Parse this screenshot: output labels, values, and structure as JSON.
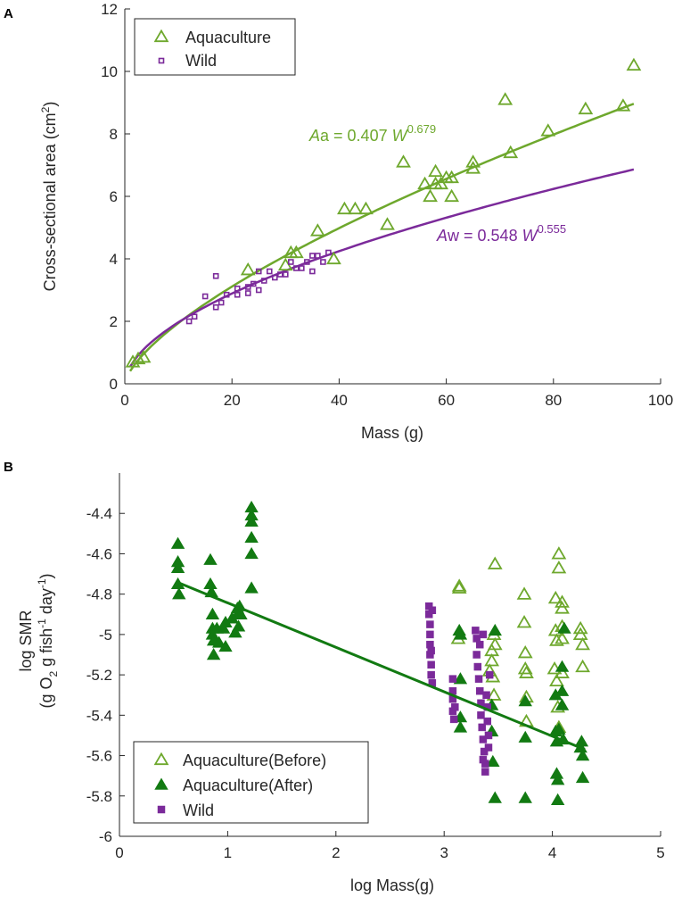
{
  "colors": {
    "aquaculture": "#6ea82d",
    "aquaculture_after": "#127a12",
    "wild": "#7b2a9a",
    "axis": "#262626"
  },
  "chart_data": [
    {
      "panel": "A",
      "type": "scatter",
      "xlabel": "Mass (g)",
      "ylabel": "Cross-sectional area (cm",
      "ylabel_sup": "2",
      "ylabel_close": ")",
      "xlim": [
        0,
        100
      ],
      "ylim": [
        0,
        12
      ],
      "xticks": [
        0,
        20,
        40,
        60,
        80,
        100
      ],
      "yticks": [
        0,
        2,
        4,
        6,
        8,
        10,
        12
      ],
      "legend": {
        "position": "top-left",
        "entries": [
          "Aquaculture",
          "Wild"
        ]
      },
      "annotations": [
        {
          "series": "Aquaculture",
          "symbol": "A",
          "sub": "a",
          "text": " = 0.407 ",
          "var": "W",
          "exp": "0.679"
        },
        {
          "series": "Wild",
          "symbol": "A",
          "sub": "w",
          "text": " = 0.548 ",
          "var": "W",
          "exp": "0.555"
        }
      ],
      "series": [
        {
          "name": "Aquaculture",
          "marker": "open-triangle",
          "color": "#6ea82d",
          "fit": {
            "a": 0.407,
            "b": 0.679,
            "xmin": 1,
            "xmax": 95
          },
          "points": [
            [
              1.5,
              0.7
            ],
            [
              2.5,
              0.8
            ],
            [
              3.5,
              0.85
            ],
            [
              23,
              3.65
            ],
            [
              30,
              3.8
            ],
            [
              31,
              4.2
            ],
            [
              32,
              4.2
            ],
            [
              36,
              4.9
            ],
            [
              39,
              4.0
            ],
            [
              41,
              5.6
            ],
            [
              43,
              5.6
            ],
            [
              45,
              5.6
            ],
            [
              49,
              5.1
            ],
            [
              52,
              7.1
            ],
            [
              56,
              6.4
            ],
            [
              57,
              6.0
            ],
            [
              58,
              6.8
            ],
            [
              58,
              6.4
            ],
            [
              59,
              6.4
            ],
            [
              60,
              6.6
            ],
            [
              61,
              6.0
            ],
            [
              61,
              6.6
            ],
            [
              65,
              7.1
            ],
            [
              65,
              6.9
            ],
            [
              71,
              9.1
            ],
            [
              72,
              7.4
            ],
            [
              79,
              8.1
            ],
            [
              86,
              8.8
            ],
            [
              93,
              8.9
            ],
            [
              95,
              10.2
            ]
          ]
        },
        {
          "name": "Wild",
          "marker": "open-square",
          "color": "#7b2a9a",
          "fit": {
            "a": 0.548,
            "b": 0.555,
            "xmin": 1,
            "xmax": 95
          },
          "points": [
            [
              12,
              2.0
            ],
            [
              13,
              2.15
            ],
            [
              15,
              2.8
            ],
            [
              17,
              2.45
            ],
            [
              17,
              3.45
            ],
            [
              18,
              2.6
            ],
            [
              19,
              2.85
            ],
            [
              21,
              2.85
            ],
            [
              21,
              3.05
            ],
            [
              23,
              2.9
            ],
            [
              23,
              3.1
            ],
            [
              24,
              3.2
            ],
            [
              25,
              3.0
            ],
            [
              25,
              3.6
            ],
            [
              26,
              3.3
            ],
            [
              27,
              3.6
            ],
            [
              28,
              3.4
            ],
            [
              29,
              3.5
            ],
            [
              30,
              3.5
            ],
            [
              31,
              3.9
            ],
            [
              32,
              3.7
            ],
            [
              33,
              3.7
            ],
            [
              34,
              3.9
            ],
            [
              35,
              3.6
            ],
            [
              35,
              4.1
            ],
            [
              36,
              4.1
            ],
            [
              37,
              3.9
            ],
            [
              38,
              4.2
            ]
          ]
        }
      ]
    },
    {
      "panel": "B",
      "type": "scatter",
      "xlabel": "log Mass(g)",
      "ylabel": "log SMR",
      "ylabel2": "(g O",
      "ylabel2_sub": "2",
      "ylabel2_mid": " g fish",
      "ylabel2_sup": "-1",
      "ylabel2_end": " day",
      "ylabel2_sup2": "-1",
      "ylabel2_close": ")",
      "xlim": [
        0,
        5
      ],
      "ylim": [
        -6,
        -4.2
      ],
      "xticks": [
        0,
        1,
        2,
        3,
        4,
        5
      ],
      "yticks": [
        -6,
        -5.8,
        -5.6,
        -5.4,
        -5.2,
        -5,
        -4.8,
        -4.6,
        -4.4
      ],
      "legend": {
        "position": "bottom-left",
        "entries": [
          "Aquaculture(Before)",
          "Aquaculture(After)",
          "Wild"
        ]
      },
      "fit_line": {
        "x": [
          0.53,
          4.3
        ],
        "y": [
          -4.74,
          -5.57
        ],
        "color": "#127a12"
      },
      "series": [
        {
          "name": "Aquaculture(Before)",
          "marker": "open-triangle",
          "color": "#6ea82d",
          "points": [
            [
              3.14,
              -4.76
            ],
            [
              3.14,
              -4.77
            ],
            [
              3.47,
              -4.65
            ],
            [
              3.13,
              -5.02
            ],
            [
              3.44,
              -5.08
            ],
            [
              3.44,
              -5.13
            ],
            [
              3.45,
              -5.21
            ],
            [
              3.46,
              -5.3
            ],
            [
              3.42,
              -5.18
            ],
            [
              3.46,
              -5.0
            ],
            [
              3.47,
              -5.05
            ],
            [
              3.74,
              -4.8
            ],
            [
              3.74,
              -4.94
            ],
            [
              3.75,
              -5.09
            ],
            [
              3.75,
              -5.17
            ],
            [
              3.76,
              -5.31
            ],
            [
              3.76,
              -5.43
            ],
            [
              3.76,
              -5.19
            ],
            [
              4.06,
              -4.6
            ],
            [
              4.06,
              -4.67
            ],
            [
              4.03,
              -4.82
            ],
            [
              4.03,
              -4.98
            ],
            [
              4.04,
              -5.03
            ],
            [
              4.02,
              -5.17
            ],
            [
              4.04,
              -5.23
            ],
            [
              4.05,
              -5.36
            ],
            [
              4.06,
              -5.46
            ],
            [
              4.09,
              -4.84
            ],
            [
              4.09,
              -4.87
            ],
            [
              4.09,
              -4.96
            ],
            [
              4.09,
              -5.02
            ],
            [
              4.09,
              -5.19
            ],
            [
              4.26,
              -4.97
            ],
            [
              4.26,
              -5.0
            ],
            [
              4.28,
              -5.05
            ],
            [
              4.28,
              -5.16
            ]
          ]
        },
        {
          "name": "Aquaculture(After)",
          "marker": "filled-triangle",
          "color": "#127a12",
          "points": [
            [
              0.54,
              -4.55
            ],
            [
              0.54,
              -4.64
            ],
            [
              0.54,
              -4.67
            ],
            [
              0.54,
              -4.75
            ],
            [
              0.55,
              -4.8
            ],
            [
              0.84,
              -4.63
            ],
            [
              0.84,
              -4.75
            ],
            [
              0.85,
              -4.79
            ],
            [
              0.86,
              -4.9
            ],
            [
              0.86,
              -4.97
            ],
            [
              0.86,
              -5.0
            ],
            [
              0.87,
              -5.03
            ],
            [
              0.87,
              -5.1
            ],
            [
              0.9,
              -4.97
            ],
            [
              0.92,
              -5.04
            ],
            [
              0.96,
              -4.97
            ],
            [
              0.98,
              -4.94
            ],
            [
              0.98,
              -5.06
            ],
            [
              1.04,
              -4.92
            ],
            [
              1.07,
              -4.99
            ],
            [
              1.09,
              -4.87
            ],
            [
              1.09,
              -4.9
            ],
            [
              1.1,
              -4.96
            ],
            [
              1.11,
              -4.86
            ],
            [
              1.12,
              -4.9
            ],
            [
              1.22,
              -4.37
            ],
            [
              1.22,
              -4.41
            ],
            [
              1.22,
              -4.44
            ],
            [
              1.22,
              -4.52
            ],
            [
              1.22,
              -4.6
            ],
            [
              1.22,
              -4.77
            ],
            [
              3.14,
              -4.98
            ],
            [
              3.15,
              -5.0
            ],
            [
              3.15,
              -5.22
            ],
            [
              3.15,
              -5.41
            ],
            [
              3.15,
              -5.46
            ],
            [
              3.44,
              -5.35
            ],
            [
              3.44,
              -5.48
            ],
            [
              3.45,
              -5.63
            ],
            [
              3.47,
              -4.98
            ],
            [
              3.47,
              -5.81
            ],
            [
              3.75,
              -5.33
            ],
            [
              3.75,
              -5.51
            ],
            [
              3.75,
              -5.81
            ],
            [
              4.03,
              -5.3
            ],
            [
              4.03,
              -5.48
            ],
            [
              4.04,
              -5.53
            ],
            [
              4.04,
              -5.69
            ],
            [
              4.05,
              -5.72
            ],
            [
              4.05,
              -5.82
            ],
            [
              4.06,
              -5.47
            ],
            [
              4.09,
              -5.16
            ],
            [
              4.09,
              -5.28
            ],
            [
              4.09,
              -5.35
            ],
            [
              4.1,
              -5.52
            ],
            [
              4.11,
              -4.97
            ],
            [
              4.26,
              -5.56
            ],
            [
              4.27,
              -5.53
            ],
            [
              4.28,
              -5.6
            ],
            [
              4.28,
              -5.71
            ]
          ]
        },
        {
          "name": "Wild",
          "marker": "filled-square",
          "color": "#7b2a9a",
          "points": [
            [
              2.86,
              -4.86
            ],
            [
              2.86,
              -4.9
            ],
            [
              2.87,
              -4.95
            ],
            [
              2.87,
              -5.0
            ],
            [
              2.87,
              -5.05
            ],
            [
              2.87,
              -5.1
            ],
            [
              2.88,
              -5.15
            ],
            [
              2.88,
              -5.2
            ],
            [
              2.89,
              -5.24
            ],
            [
              2.89,
              -4.88
            ],
            [
              2.88,
              -5.08
            ],
            [
              3.08,
              -5.22
            ],
            [
              3.08,
              -5.28
            ],
            [
              3.08,
              -5.32
            ],
            [
              3.08,
              -5.38
            ],
            [
              3.09,
              -5.42
            ],
            [
              3.1,
              -5.36
            ],
            [
              3.29,
              -4.98
            ],
            [
              3.3,
              -5.02
            ],
            [
              3.3,
              -5.1
            ],
            [
              3.31,
              -5.16
            ],
            [
              3.32,
              -5.22
            ],
            [
              3.33,
              -5.28
            ],
            [
              3.34,
              -5.34
            ],
            [
              3.34,
              -5.4
            ],
            [
              3.35,
              -5.46
            ],
            [
              3.36,
              -5.52
            ],
            [
              3.37,
              -5.58
            ],
            [
              3.38,
              -5.64
            ],
            [
              3.38,
              -5.68
            ],
            [
              3.39,
              -5.3
            ],
            [
              3.4,
              -5.36
            ],
            [
              3.4,
              -5.43
            ],
            [
              3.41,
              -5.5
            ],
            [
              3.41,
              -5.56
            ],
            [
              3.36,
              -5.0
            ],
            [
              3.33,
              -5.05
            ],
            [
              3.42,
              -5.2
            ],
            [
              3.36,
              -5.62
            ]
          ]
        }
      ]
    }
  ]
}
